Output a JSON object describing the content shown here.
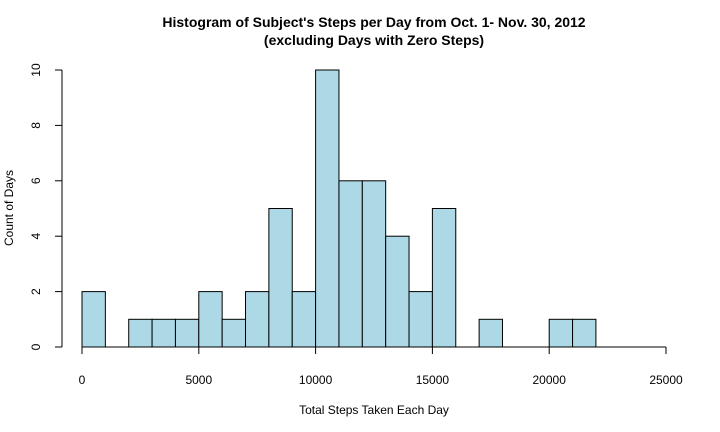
{
  "chart_data": {
    "type": "bar",
    "title": "Histogram of Subject's Steps per Day from Oct. 1- Nov. 30, 2012",
    "subtitle": "(excluding Days with Zero Steps)",
    "xlabel": "Total Steps Taken Each Day",
    "ylabel": "Count of Days",
    "xlim": [
      0,
      25000
    ],
    "ylim": [
      0,
      10
    ],
    "bin_width": 1000,
    "bins": [
      {
        "start": 0,
        "end": 1000,
        "count": 2
      },
      {
        "start": 1000,
        "end": 2000,
        "count": 0
      },
      {
        "start": 2000,
        "end": 3000,
        "count": 1
      },
      {
        "start": 3000,
        "end": 4000,
        "count": 1
      },
      {
        "start": 4000,
        "end": 5000,
        "count": 1
      },
      {
        "start": 5000,
        "end": 6000,
        "count": 2
      },
      {
        "start": 6000,
        "end": 7000,
        "count": 1
      },
      {
        "start": 7000,
        "end": 8000,
        "count": 2
      },
      {
        "start": 8000,
        "end": 9000,
        "count": 5
      },
      {
        "start": 9000,
        "end": 10000,
        "count": 2
      },
      {
        "start": 10000,
        "end": 11000,
        "count": 10
      },
      {
        "start": 11000,
        "end": 12000,
        "count": 6
      },
      {
        "start": 12000,
        "end": 13000,
        "count": 6
      },
      {
        "start": 13000,
        "end": 14000,
        "count": 4
      },
      {
        "start": 14000,
        "end": 15000,
        "count": 2
      },
      {
        "start": 15000,
        "end": 16000,
        "count": 5
      },
      {
        "start": 16000,
        "end": 17000,
        "count": 0
      },
      {
        "start": 17000,
        "end": 18000,
        "count": 1
      },
      {
        "start": 18000,
        "end": 19000,
        "count": 0
      },
      {
        "start": 19000,
        "end": 20000,
        "count": 0
      },
      {
        "start": 20000,
        "end": 21000,
        "count": 1
      },
      {
        "start": 21000,
        "end": 22000,
        "count": 1
      }
    ],
    "x_ticks": [
      0,
      5000,
      10000,
      15000,
      20000,
      25000
    ],
    "y_ticks": [
      0,
      2,
      4,
      6,
      8,
      10
    ],
    "bar_color": "#add8e6",
    "grid": false
  }
}
